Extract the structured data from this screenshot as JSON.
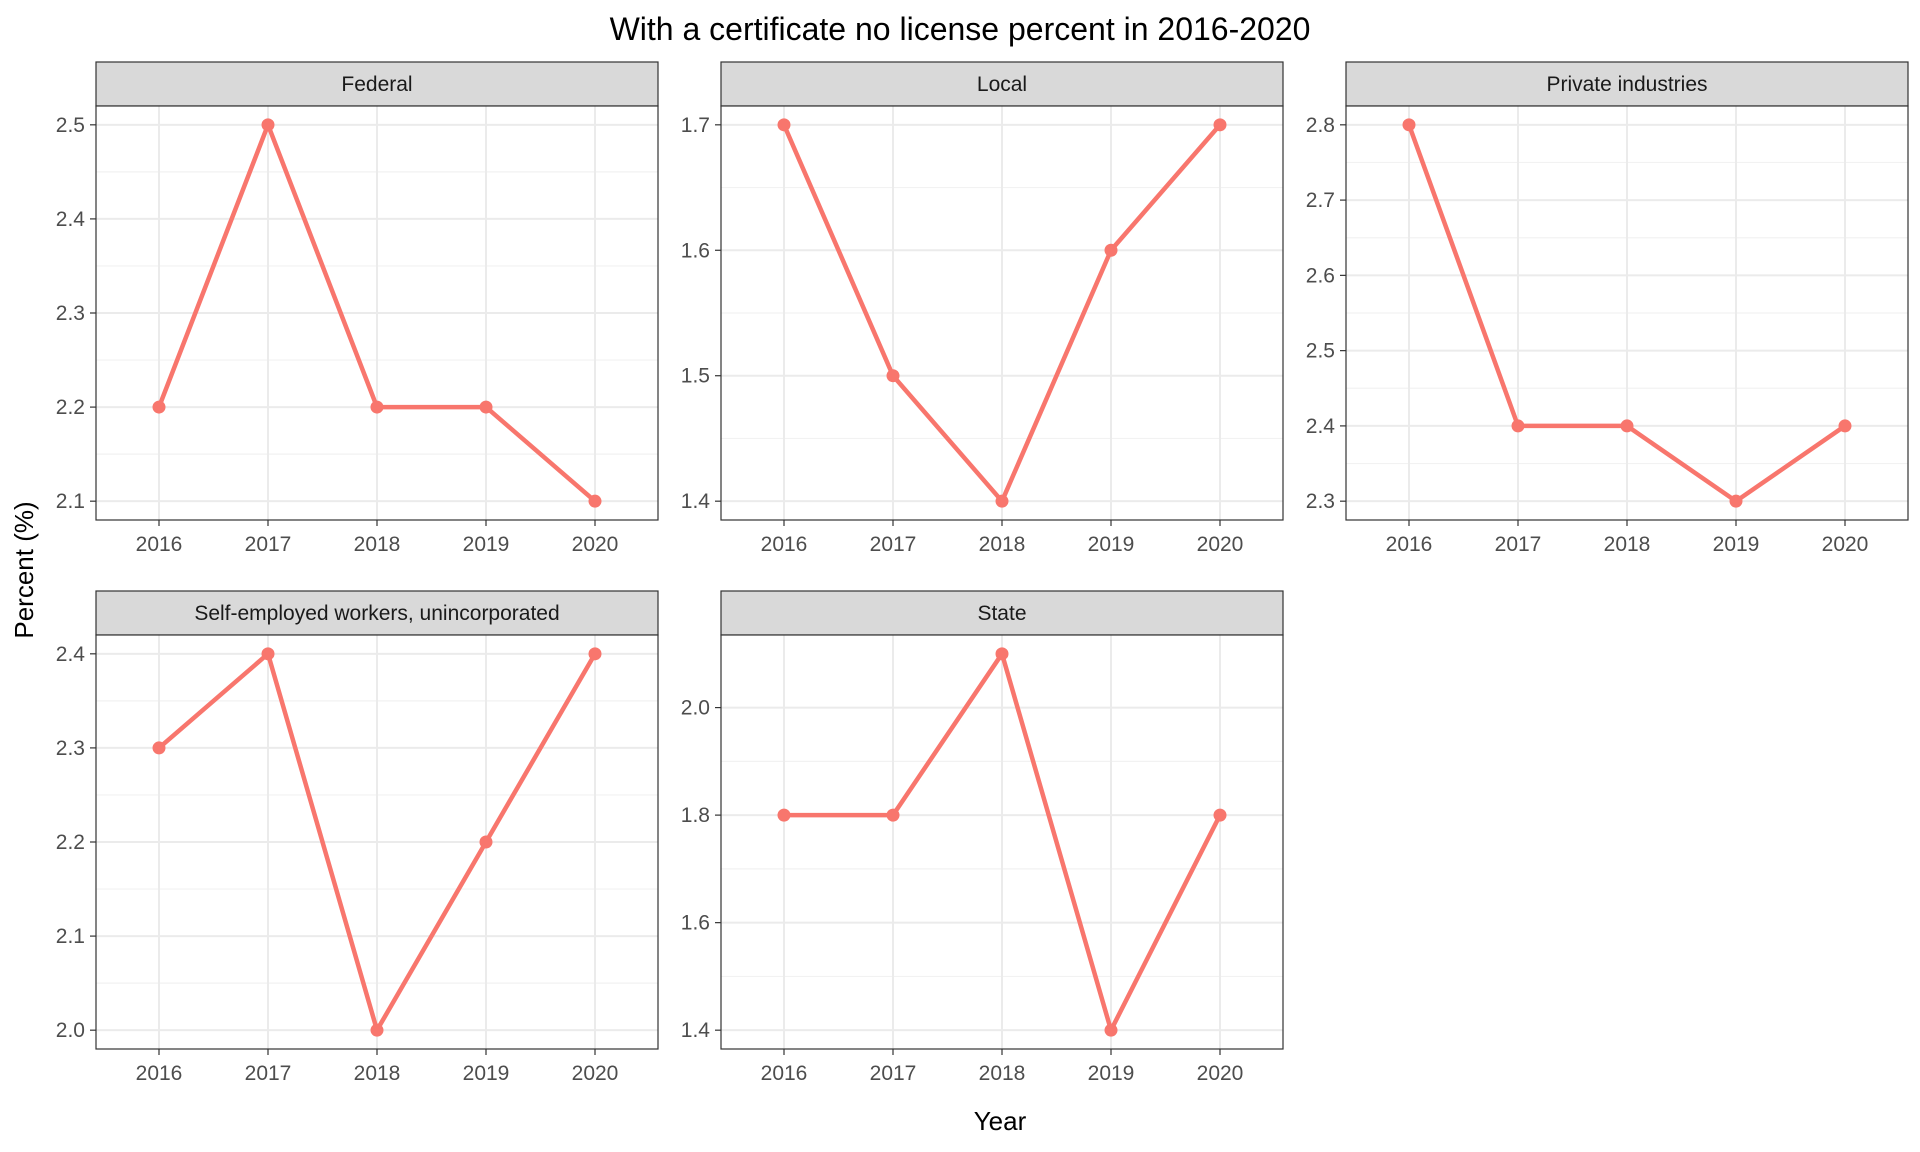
{
  "chart_data": {
    "type": "line",
    "title": "With a certificate no license percent in 2016-2020",
    "xlabel": "Year",
    "ylabel": "Percent (%)",
    "x": [
      "2016",
      "2017",
      "2018",
      "2019",
      "2020"
    ],
    "grid": true,
    "colors": {
      "series": "#f8766d",
      "strip_bg": "#d9d9d9",
      "grid": "#ebebeb",
      "panel_border": "#333333"
    },
    "panels": [
      {
        "name": "Federal",
        "values": [
          2.2,
          2.5,
          2.2,
          2.2,
          2.1
        ],
        "ylim": [
          2.08,
          2.52
        ],
        "yticks": [
          "2.1",
          "2.2",
          "2.3",
          "2.4",
          "2.5"
        ]
      },
      {
        "name": "Local",
        "values": [
          1.7,
          1.5,
          1.4,
          1.6,
          1.7
        ],
        "ylim": [
          1.385,
          1.715
        ],
        "yticks": [
          "1.4",
          "1.5",
          "1.6",
          "1.7"
        ]
      },
      {
        "name": "Private industries",
        "values": [
          2.8,
          2.4,
          2.4,
          2.3,
          2.4
        ],
        "ylim": [
          2.275,
          2.825
        ],
        "yticks": [
          "2.3",
          "2.4",
          "2.5",
          "2.6",
          "2.7",
          "2.8"
        ]
      },
      {
        "name": "Self-employed workers, unincorporated",
        "values": [
          2.3,
          2.4,
          2.0,
          2.2,
          2.4
        ],
        "ylim": [
          1.98,
          2.42
        ],
        "yticks": [
          "2.0",
          "2.1",
          "2.2",
          "2.3",
          "2.4"
        ]
      },
      {
        "name": "State",
        "values": [
          1.8,
          1.8,
          2.1,
          1.4,
          1.8
        ],
        "ylim": [
          1.365,
          2.135
        ],
        "yticks": [
          "1.4",
          "1.6",
          "1.8",
          "2.0"
        ]
      }
    ]
  }
}
